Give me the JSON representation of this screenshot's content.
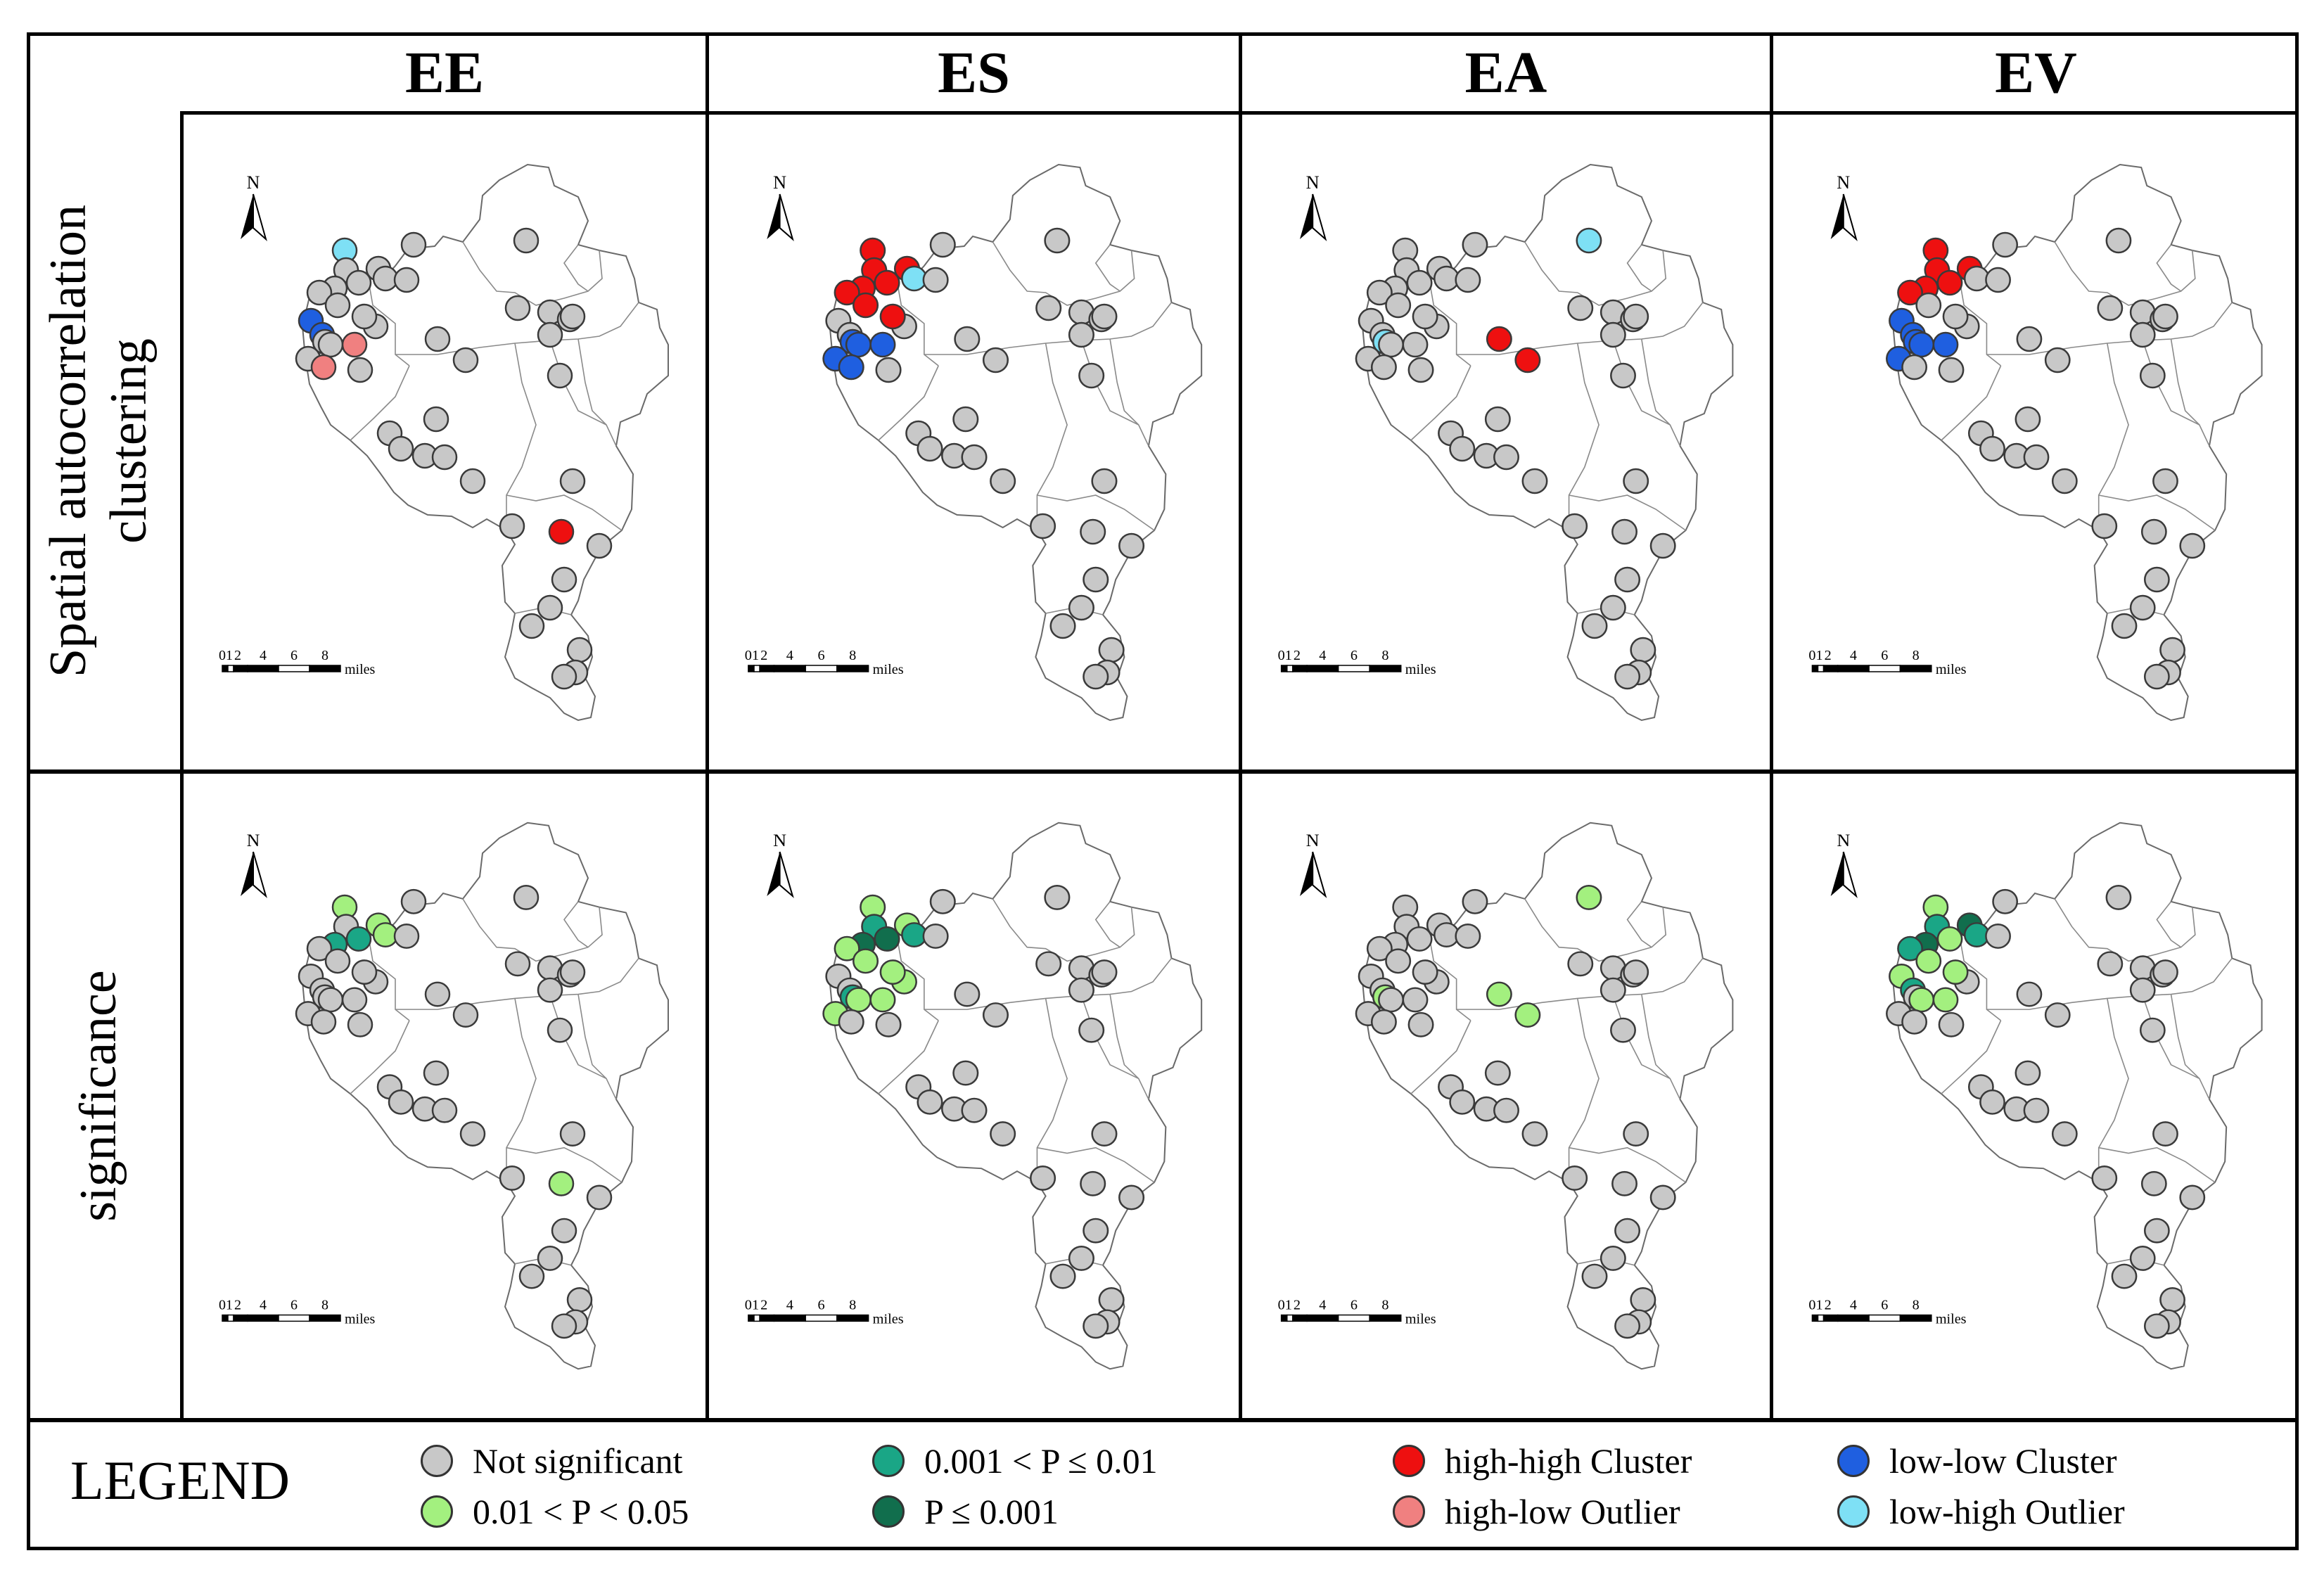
{
  "columns": [
    "EE",
    "ES",
    "EA",
    "EV"
  ],
  "rows": [
    "Spatial autocorrelation clustering",
    "significance"
  ],
  "row_lines": [
    [
      "Spatial autocorrelation",
      "clustering"
    ],
    [
      "significance"
    ]
  ],
  "north_label": "N",
  "scale": {
    "ticks": [
      "0",
      "1",
      "2",
      "4",
      "6",
      "8"
    ],
    "unit": "miles"
  },
  "legend": {
    "title": "LEGEND",
    "items": [
      {
        "key": "ns",
        "label": "Not significant",
        "color": "#c8c8c8"
      },
      {
        "key": "p05",
        "label": "0.01 < P < 0.05",
        "color": "#a3f07f"
      },
      {
        "key": "p01",
        "label": "0.001 < P ≤  0.01",
        "color": "#1aa686"
      },
      {
        "key": "p001",
        "label": "P ≤ 0.001",
        "color": "#116e4d"
      },
      {
        "key": "hh",
        "label": "high-high Cluster",
        "color": "#ee1010"
      },
      {
        "key": "hl",
        "label": "high-low Outlier",
        "color": "#f08080"
      },
      {
        "key": "ll",
        "label": "low-low Cluster",
        "color": "#1f5fe0"
      },
      {
        "key": "lh",
        "label": "low-high Outlier",
        "color": "#7ee0f5"
      }
    ]
  },
  "map_classes": {
    "EE_cluster": {
      "hh": [
        37
      ],
      "hl": [
        14,
        16
      ],
      "ll": [
        10,
        11
      ],
      "lh": [
        0
      ]
    },
    "ES_cluster": {
      "hh": [
        0,
        1,
        2,
        3,
        4,
        6,
        8,
        9
      ],
      "hl": [],
      "ll": [
        12,
        13,
        14,
        15,
        16
      ],
      "lh": [
        5
      ]
    },
    "EA_cluster": {
      "hh": [
        20,
        21
      ],
      "hl": [],
      "ll": [],
      "lh": [
        12,
        22
      ]
    },
    "EV_cluster": {
      "hh": [
        0,
        1,
        2,
        3,
        4,
        6
      ],
      "hl": [],
      "ll": [
        10,
        11,
        12,
        13,
        14,
        15
      ],
      "lh": []
    },
    "EE_sig": {
      "p05": [
        0,
        4,
        5,
        37
      ],
      "p01": [
        2,
        3
      ],
      "p001": []
    },
    "ES_sig": {
      "p05": [
        0,
        4,
        6,
        7,
        8,
        9,
        13,
        14,
        15
      ],
      "p01": [
        1,
        5,
        12
      ],
      "p001": [
        2,
        3
      ]
    },
    "EA_sig": {
      "p05": [
        12,
        20,
        21,
        22
      ],
      "p01": [],
      "p001": []
    },
    "EV_sig": {
      "p05": [
        0,
        3,
        8,
        9,
        10,
        13,
        14
      ],
      "p01": [
        1,
        5,
        6,
        11
      ],
      "p001": [
        2,
        4
      ]
    }
  }
}
